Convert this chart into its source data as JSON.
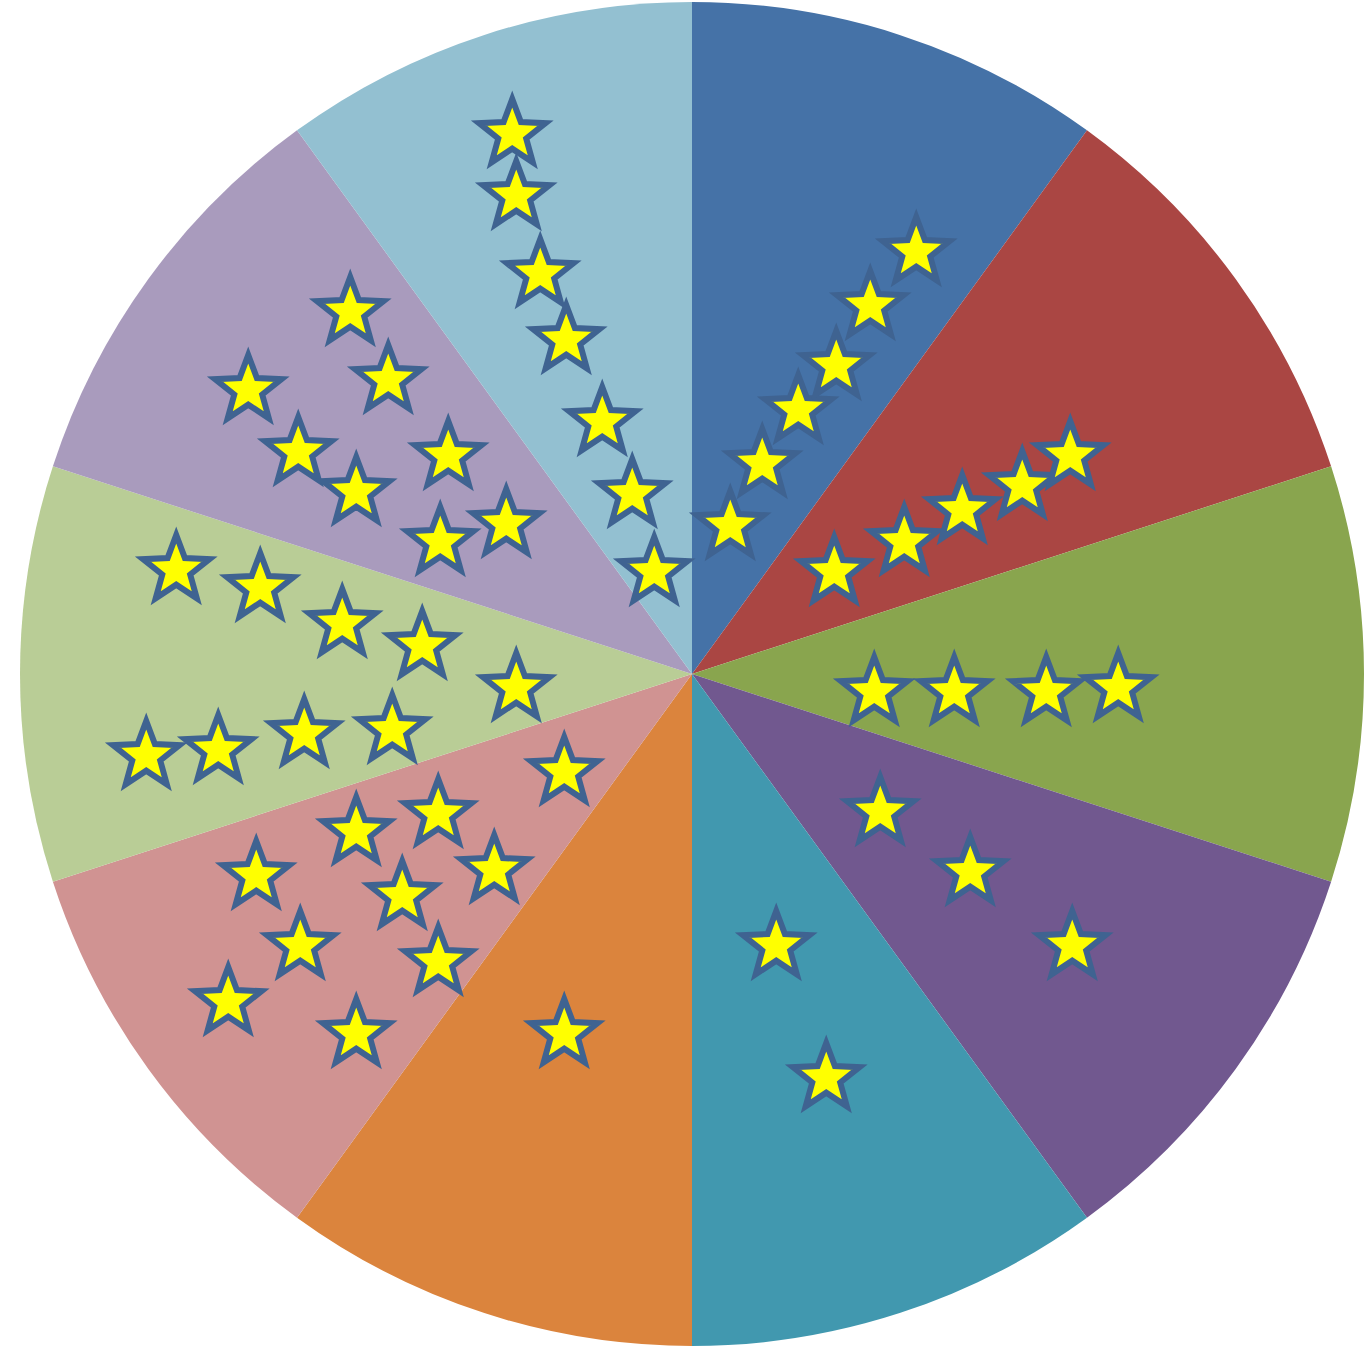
{
  "chart_data": {
    "type": "pie",
    "categories": [
      null,
      null,
      null,
      null,
      null,
      null,
      null,
      null,
      null,
      null
    ],
    "values": [
      10,
      10,
      10,
      10,
      10,
      10,
      10,
      10,
      10,
      10
    ],
    "colors": [
      "#4572a7",
      "#aa4643",
      "#89a54e",
      "#71588f",
      "#4198af",
      "#db843d",
      "#d09392",
      "#b9cd96",
      "#a99bbd",
      "#93c0d1"
    ]
  }
}
